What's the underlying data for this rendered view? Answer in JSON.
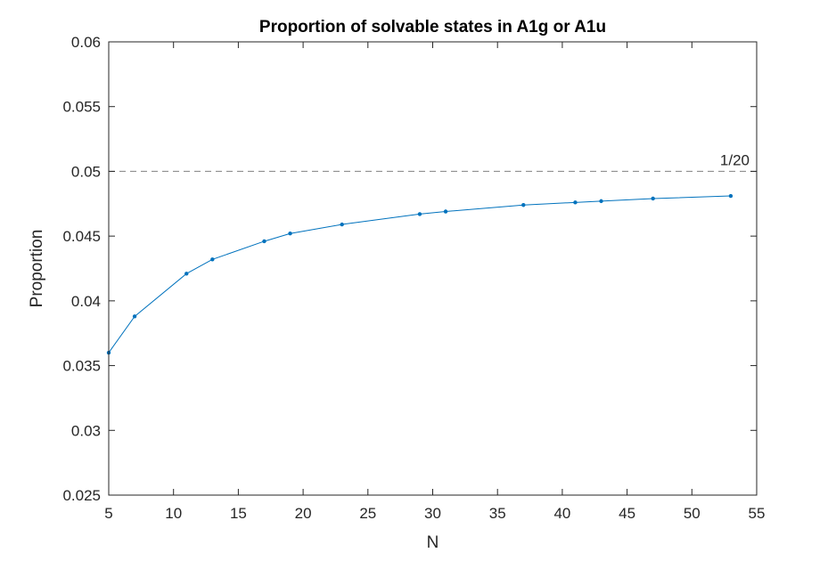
{
  "chart_data": {
    "type": "line",
    "title": "Proportion of solvable states in A1g or A1u",
    "xlabel": "N",
    "ylabel": "Proportion",
    "xlim": [
      5,
      55
    ],
    "ylim": [
      0.025,
      0.06
    ],
    "xticks": [
      5,
      10,
      15,
      20,
      25,
      30,
      35,
      40,
      45,
      50,
      55
    ],
    "yticks": [
      0.025,
      0.03,
      0.035,
      0.04,
      0.045,
      0.05,
      0.055,
      0.06
    ],
    "xtick_labels": [
      "5",
      "10",
      "15",
      "20",
      "25",
      "30",
      "35",
      "40",
      "45",
      "50",
      "55"
    ],
    "ytick_labels": [
      "0.025",
      "0.03",
      "0.035",
      "0.04",
      "0.045",
      "0.05",
      "0.055",
      "0.06"
    ],
    "grid": false,
    "box": true,
    "series": [
      {
        "x": [
          5,
          7,
          11,
          13,
          17,
          19,
          23,
          29,
          31,
          37,
          41,
          43,
          47,
          53
        ],
        "y": [
          0.036,
          0.0388,
          0.0421,
          0.0432,
          0.0446,
          0.0452,
          0.0459,
          0.0467,
          0.0469,
          0.0474,
          0.0476,
          0.0477,
          0.0479,
          0.0481
        ],
        "color": "#0072BD",
        "marker": "dot"
      }
    ],
    "reference_line": {
      "y": 0.05,
      "style": "dashed",
      "color": "#808080",
      "label": "1/20"
    }
  }
}
